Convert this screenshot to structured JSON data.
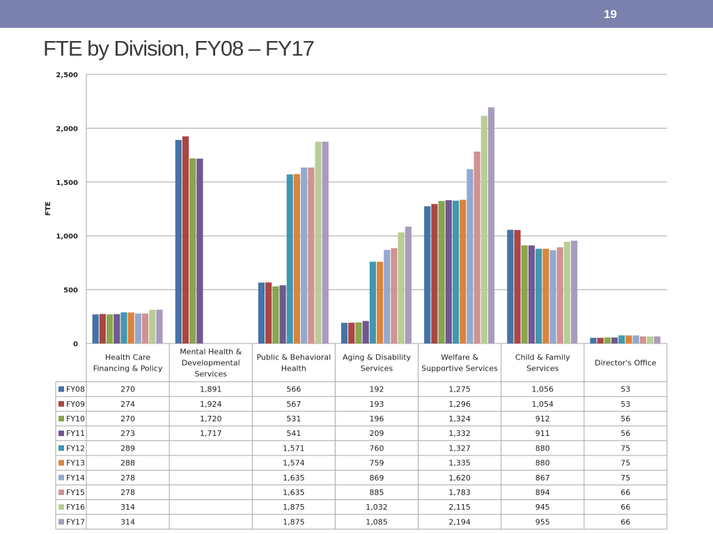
{
  "slide": {
    "page_number": "19",
    "title": "FTE by Division, FY08 – FY17"
  },
  "chart_data": {
    "type": "bar",
    "title": "FTE by Division, FY08 – FY17",
    "ylabel": "FTE",
    "xlabel": "",
    "ylim": [
      0,
      2500
    ],
    "yticks": [
      0,
      500,
      1000,
      1500,
      2000,
      2500
    ],
    "ytick_labels": [
      "0",
      "500",
      "1,000",
      "1,500",
      "2,000",
      "2,500"
    ],
    "grid": true,
    "legend": "data-table-left",
    "categories": [
      [
        "Health Care",
        "Financing & Policy"
      ],
      [
        "Mental Health &",
        "Developmental",
        "Services"
      ],
      [
        "Public & Behavioral",
        "Health"
      ],
      [
        "Aging & Disability",
        "Services"
      ],
      [
        "Welfare &",
        "Supportive Services"
      ],
      [
        "Child & Family",
        "Services"
      ],
      [
        "Director's Office"
      ]
    ],
    "series": [
      {
        "name": "FY08",
        "color": "#4573a7",
        "values": [
          270,
          1891,
          566,
          192,
          1275,
          1056,
          53
        ],
        "labels": [
          "270",
          "1,891",
          "566",
          "192",
          "1,275",
          "1,056",
          "53"
        ]
      },
      {
        "name": "FY09",
        "color": "#aa4643",
        "values": [
          274,
          1924,
          567,
          193,
          1296,
          1054,
          53
        ],
        "labels": [
          "274",
          "1,924",
          "567",
          "193",
          "1,296",
          "1,054",
          "53"
        ]
      },
      {
        "name": "FY10",
        "color": "#89a54e",
        "values": [
          270,
          1720,
          531,
          196,
          1324,
          912,
          56
        ],
        "labels": [
          "270",
          "1,720",
          "531",
          "196",
          "1,324",
          "912",
          "56"
        ]
      },
      {
        "name": "FY11",
        "color": "#71588f",
        "values": [
          273,
          1717,
          541,
          209,
          1332,
          911,
          56
        ],
        "labels": [
          "273",
          "1,717",
          "541",
          "209",
          "1,332",
          "911",
          "56"
        ]
      },
      {
        "name": "FY12",
        "color": "#4198af",
        "values": [
          289,
          null,
          1571,
          760,
          1327,
          880,
          75
        ],
        "labels": [
          "289",
          "",
          "1,571",
          "760",
          "1,327",
          "880",
          "75"
        ]
      },
      {
        "name": "FY13",
        "color": "#db843d",
        "values": [
          288,
          null,
          1574,
          759,
          1335,
          880,
          75
        ],
        "labels": [
          "288",
          "",
          "1,574",
          "759",
          "1,335",
          "880",
          "75"
        ]
      },
      {
        "name": "FY14",
        "color": "#93a9cf",
        "values": [
          278,
          null,
          1635,
          869,
          1620,
          867,
          75
        ],
        "labels": [
          "278",
          "",
          "1,635",
          "869",
          "1,620",
          "867",
          "75"
        ]
      },
      {
        "name": "FY15",
        "color": "#d19392",
        "values": [
          278,
          null,
          1635,
          885,
          1783,
          894,
          66
        ],
        "labels": [
          "278",
          "",
          "1,635",
          "885",
          "1,783",
          "894",
          "66"
        ]
      },
      {
        "name": "FY16",
        "color": "#b9cd96",
        "values": [
          314,
          null,
          1875,
          1032,
          2115,
          945,
          66
        ],
        "labels": [
          "314",
          "",
          "1,875",
          "1,032",
          "2,115",
          "945",
          "66"
        ]
      },
      {
        "name": "FY17",
        "color": "#a99bbd",
        "values": [
          314,
          null,
          1875,
          1085,
          2194,
          955,
          66
        ],
        "labels": [
          "314",
          "",
          "1,875",
          "1,085",
          "2,194",
          "955",
          "66"
        ]
      }
    ]
  }
}
